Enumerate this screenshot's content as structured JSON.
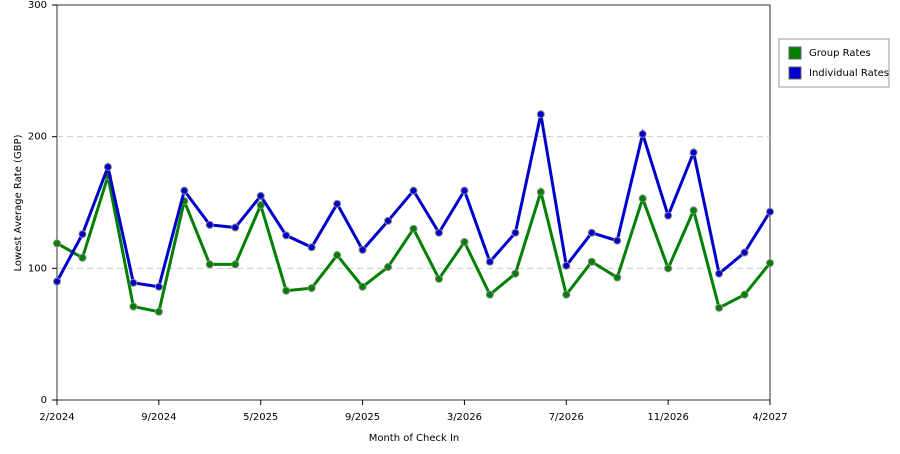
{
  "chart_data": {
    "type": "line",
    "x_label": "Month of Check In",
    "y_label": "Lowest Average Rate (GBP)",
    "categories": [
      "2/2024",
      null,
      null,
      null,
      "9/2024",
      null,
      null,
      null,
      "5/2025",
      null,
      null,
      null,
      "9/2025",
      null,
      null,
      null,
      "3/2026",
      null,
      null,
      null,
      "7/2026",
      null,
      null,
      null,
      "11/2026",
      null,
      null,
      null,
      "4/2027"
    ],
    "series": [
      {
        "name": "Group Rates",
        "color": "#008000",
        "values": [
          119,
          108,
          170,
          71,
          67,
          151,
          103,
          103,
          148,
          83,
          85,
          110,
          86,
          101,
          130,
          92,
          120,
          80,
          96,
          158,
          80,
          105,
          93,
          153,
          100,
          144,
          70,
          80,
          104
        ]
      },
      {
        "name": "Individual Rates",
        "color": "#0000cc",
        "values": [
          90,
          126,
          177,
          89,
          86,
          159,
          133,
          131,
          155,
          125,
          116,
          149,
          114,
          136,
          159,
          127,
          159,
          105,
          127,
          217,
          102,
          127,
          121,
          202,
          140,
          188,
          96,
          112,
          143
        ]
      }
    ],
    "ylim": [
      0,
      300
    ],
    "yticks": [
      0,
      100,
      200,
      300
    ],
    "grid": true,
    "legend": "right"
  }
}
